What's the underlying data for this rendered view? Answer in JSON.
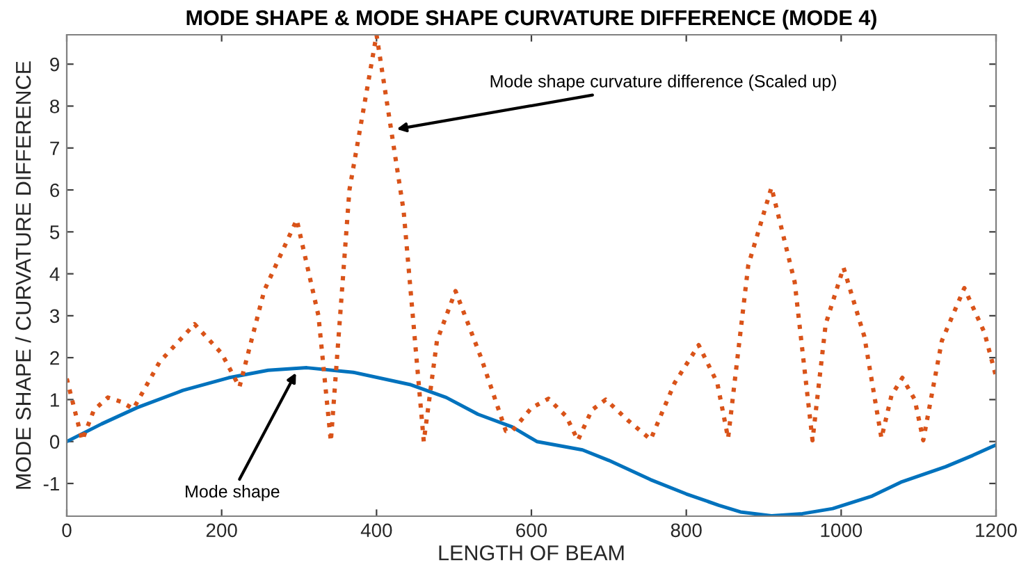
{
  "chart_data": {
    "type": "line",
    "title": "MODE SHAPE & MODE SHAPE CURVATURE DIFFERENCE (MODE 4)",
    "xlabel": "LENGTH OF BEAM",
    "ylabel": "MODE SHAPE / CURVATURE DIFFERENCE",
    "xlim": [
      0,
      1200
    ],
    "ylim": [
      -1.78,
      9.7
    ],
    "xticks": [
      0,
      200,
      400,
      600,
      800,
      1000,
      1200
    ],
    "yticks": [
      -1,
      0,
      1,
      2,
      3,
      4,
      5,
      6,
      7,
      8,
      9
    ],
    "grid": false,
    "legend": false,
    "series": [
      {
        "color": "#0072bd",
        "line_style": "solid",
        "x": [
          0,
          45,
          91,
          150,
          209,
          260,
          310,
          370,
          443,
          490,
          531,
          575,
          607,
          666,
          700,
          754,
          800,
          842,
          870,
          910,
          950,
          989,
          1040,
          1077,
          1135,
          1170,
          1200
        ],
        "values": [
          0,
          0.42,
          0.81,
          1.22,
          1.52,
          1.7,
          1.76,
          1.65,
          1.36,
          1.05,
          0.65,
          0.35,
          0,
          -0.2,
          -0.45,
          -0.91,
          -1.25,
          -1.52,
          -1.68,
          -1.77,
          -1.72,
          -1.6,
          -1.3,
          -0.97,
          -0.6,
          -0.33,
          -0.08
        ]
      },
      {
        "color": "#d95319",
        "line_style": "dotted",
        "x": [
          0,
          20,
          35,
          53,
          70,
          86,
          120,
          165,
          200,
          223,
          255,
          297,
          325,
          341,
          365,
          400,
          435,
          461,
          478,
          502,
          535,
          567,
          575,
          600,
          622,
          645,
          660,
          678,
          696,
          725,
          754,
          785,
          816,
          840,
          854,
          880,
          910,
          940,
          963,
          980,
          1003,
          1030,
          1052,
          1065,
          1079,
          1095,
          1106,
          1130,
          1159,
          1185,
          1200
        ],
        "values": [
          1.5,
          0.03,
          0.75,
          1.05,
          0.95,
          0.78,
          1.9,
          2.8,
          2.1,
          1.3,
          3.6,
          5.29,
          3.0,
          0,
          6.0,
          9.7,
          5.5,
          0,
          2.4,
          3.59,
          2.0,
          0.25,
          0.25,
          0.8,
          1.02,
          0.6,
          0.03,
          0.75,
          1.0,
          0.5,
          0.05,
          1.4,
          2.3,
          1.4,
          0.08,
          4.2,
          6.06,
          3.8,
          0.03,
          2.8,
          4.15,
          2.5,
          0.08,
          1.1,
          1.52,
          1.0,
          0.03,
          2.4,
          3.66,
          2.6,
          1.55
        ]
      }
    ],
    "annotations": [
      {
        "text": "Mode shape",
        "x": 296,
        "y": 1.64
      },
      {
        "text": "Mode shape curvature difference (Scaled up)",
        "x": 426,
        "y": 7.45
      }
    ]
  }
}
